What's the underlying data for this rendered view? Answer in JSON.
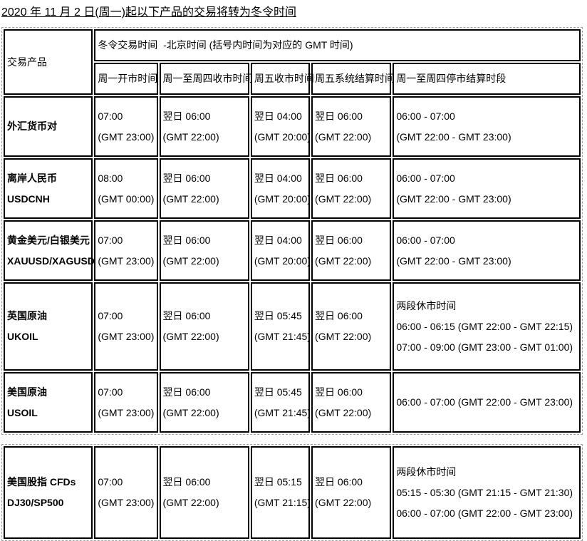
{
  "page_title": "2020 年 11 月 2 日(周一)起以下产品的交易将转为冬令时间",
  "tables": [
    {
      "header": {
        "product_label": "交易产品",
        "group_label": "冬令交易时间  -北京时间 (括号内时间为对应的 GMT 时间)",
        "columns": [
          "周一开市时间",
          "周一至周四收市时间",
          "周五收市时间",
          "周五系统结算时间",
          "周一至周四停市结算时段"
        ]
      },
      "rows": [
        {
          "product": [
            "外汇货币对"
          ],
          "cells": [
            [
              "07:00",
              "(GMT 23:00)"
            ],
            [
              "翌日 06:00",
              "(GMT 22:00)"
            ],
            [
              "翌日 04:00",
              "(GMT 20:00)"
            ],
            [
              "翌日 06:00",
              "(GMT 22:00)"
            ],
            [
              "06:00 - 07:00",
              "(GMT 22:00 - GMT 23:00)"
            ]
          ]
        },
        {
          "product": [
            "离岸人民币",
            "USDCNH"
          ],
          "cells": [
            [
              "08:00",
              "(GMT 00:00)"
            ],
            [
              "翌日 06:00",
              "(GMT 22:00)"
            ],
            [
              "翌日 04:00",
              "(GMT 20:00)"
            ],
            [
              "翌日 06:00",
              "(GMT 22:00)"
            ],
            [
              "06:00 - 07:00",
              "(GMT 22:00 - GMT 23:00)"
            ]
          ]
        },
        {
          "product": [
            "黄金美元/白银美元",
            "XAUUSD/XAGUSD"
          ],
          "cells": [
            [
              "07:00",
              "(GMT 23:00)"
            ],
            [
              "翌日 06:00",
              "(GMT 22:00)"
            ],
            [
              "翌日 04:00",
              "(GMT 20:00)"
            ],
            [
              "翌日 06:00",
              "(GMT 22:00)"
            ],
            [
              "06:00 - 07:00",
              "(GMT 22:00 - GMT 23:00)"
            ]
          ]
        },
        {
          "product": [
            "英国原油",
            "UKOIL"
          ],
          "cells": [
            [
              "07:00",
              "(GMT 23:00)"
            ],
            [
              "翌日 06:00",
              "(GMT 22:00)"
            ],
            [
              "翌日 05:45",
              "(GMT 21:45)"
            ],
            [
              "翌日 06:00",
              "(GMT 22:00)"
            ],
            [
              "两段休市时间",
              "06:00 - 06:15 (GMT 22:00 - GMT 22:15)",
              "07:00 - 09:00 (GMT 23:00 - GMT 01:00)"
            ]
          ]
        },
        {
          "product": [
            "美国原油",
            "USOIL"
          ],
          "cells": [
            [
              "07:00",
              "(GMT 23:00)"
            ],
            [
              "翌日 06:00",
              "(GMT 22:00)"
            ],
            [
              "翌日 05:45",
              "(GMT 21:45)"
            ],
            [
              "翌日 06:00",
              "(GMT 22:00)"
            ],
            [
              "06:00 - 07:00 (GMT 22:00 - GMT 23:00)"
            ]
          ]
        }
      ]
    },
    {
      "header": null,
      "rows": [
        {
          "product": [
            "美国股指 CFDs",
            "DJ30/SP500"
          ],
          "cells": [
            [
              "07:00",
              "(GMT 23:00)"
            ],
            [
              "翌日 06:00",
              "(GMT 22:00)"
            ],
            [
              "翌日 05:15",
              "(GMT 21:15)"
            ],
            [
              "翌日 06:00",
              "(GMT 22:00)"
            ],
            [
              "两段休市时间",
              "05:15 - 05:30 (GMT 21:15 - GMT 21:30)",
              "06:00 - 07:00 (GMT 22:00 - GMT 23:00)"
            ]
          ]
        }
      ]
    }
  ]
}
